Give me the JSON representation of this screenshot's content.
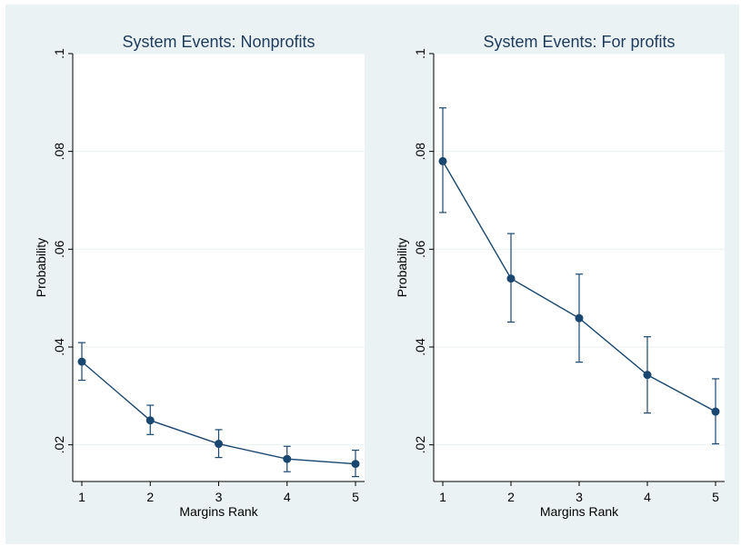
{
  "figure": {
    "outer_background": "#ffffff",
    "graph_background": "#eaf2f3",
    "plot_background": "#ffffff",
    "series_color": "#1a476f",
    "grid_color": "#eaf2f3",
    "text_color": "#000000",
    "title_color": "#1f3b5c"
  },
  "chart_data": [
    {
      "type": "line",
      "title": "System Events: Nonprofits",
      "xlabel": "Margins Rank",
      "ylabel": "Probability",
      "x": [
        1,
        2,
        3,
        4,
        5
      ],
      "xticks": [
        "1",
        "2",
        "3",
        "4",
        "5"
      ],
      "xlim": [
        1,
        5
      ],
      "yticks": [
        0.02,
        0.04,
        0.06,
        0.08,
        0.1
      ],
      "ytick_labels": [
        ".02",
        ".04",
        ".06",
        ".08",
        ".1"
      ],
      "ylim": [
        0.0125,
        0.1
      ],
      "grid": true,
      "series": [
        {
          "values": [
            0.037,
            0.025,
            0.0202,
            0.0171,
            0.0161
          ],
          "ci_lower": [
            0.0332,
            0.0221,
            0.0174,
            0.0145,
            0.0135
          ],
          "ci_upper": [
            0.0409,
            0.0281,
            0.0231,
            0.0197,
            0.0189
          ]
        }
      ]
    },
    {
      "type": "line",
      "title": "System Events: For profits",
      "xlabel": "Margins Rank",
      "ylabel": "Probability",
      "x": [
        1,
        2,
        3,
        4,
        5
      ],
      "xticks": [
        "1",
        "2",
        "3",
        "4",
        "5"
      ],
      "xlim": [
        1,
        5
      ],
      "yticks": [
        0.02,
        0.04,
        0.06,
        0.08,
        0.1
      ],
      "ytick_labels": [
        ".02",
        ".04",
        ".06",
        ".08",
        ".1"
      ],
      "ylim": [
        0.0125,
        0.1
      ],
      "grid": true,
      "series": [
        {
          "values": [
            0.078,
            0.054,
            0.0459,
            0.0343,
            0.0268
          ],
          "ci_lower": [
            0.0675,
            0.0451,
            0.0369,
            0.0265,
            0.0202
          ],
          "ci_upper": [
            0.0889,
            0.0632,
            0.0549,
            0.0421,
            0.0335
          ]
        }
      ]
    }
  ]
}
